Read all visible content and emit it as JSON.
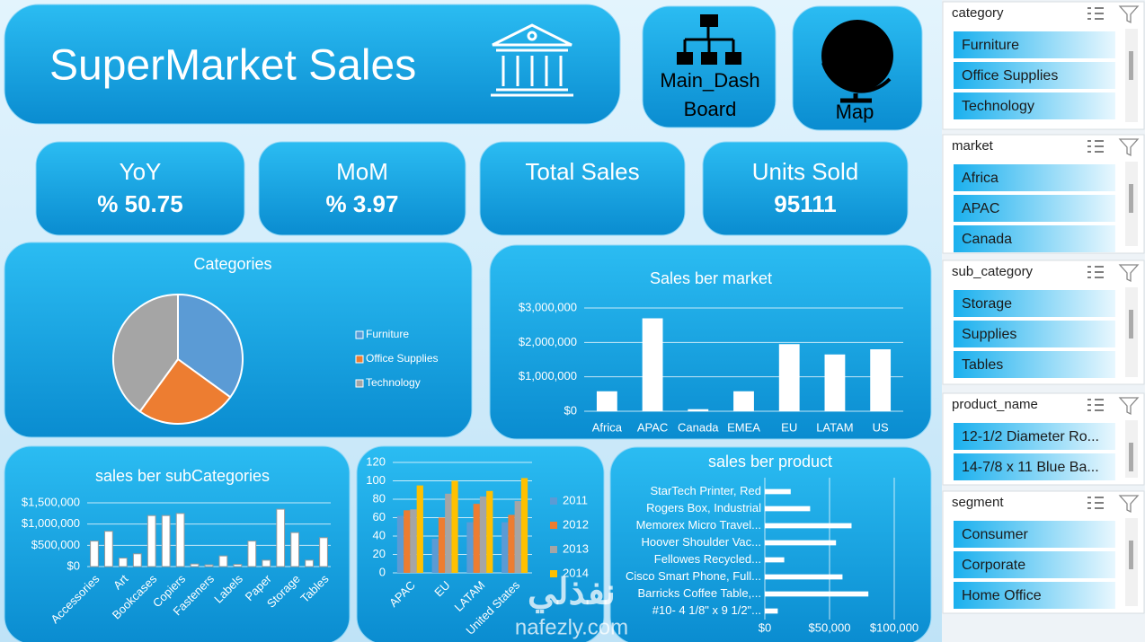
{
  "header": {
    "title": "SuperMarket Sales",
    "nav": [
      {
        "lines": [
          "Main_Dash",
          "Board"
        ]
      },
      {
        "lines": [
          "Map"
        ]
      }
    ]
  },
  "kpis": [
    {
      "label": "YoY",
      "value": "% 50.75"
    },
    {
      "label": "MoM",
      "value": "% 3.97"
    },
    {
      "label": "Total Sales"
    },
    {
      "label": "Units Sold",
      "value": "95111"
    }
  ],
  "slicers": [
    {
      "title": "category",
      "items": [
        "Furniture",
        "Office Supplies",
        "Technology"
      ]
    },
    {
      "title": "market",
      "items": [
        "Africa",
        "APAC",
        "Canada"
      ]
    },
    {
      "title": "sub_category",
      "items": [
        "Storage",
        "Supplies",
        "Tables"
      ]
    },
    {
      "title": "product_name",
      "items": [
        "12-1/2 Diameter Ro...",
        "14-7/8 x 11 Blue Ba..."
      ]
    },
    {
      "title": "segment",
      "items": [
        "Consumer",
        "Corporate",
        "Home Office"
      ]
    }
  ],
  "watermark": {
    "arabic": "نفذلي",
    "latin": "nafezly.com"
  },
  "chart_data": [
    {
      "type": "pie",
      "title": "Categories",
      "categories": [
        "Furniture",
        "Office Supplies",
        "Technology"
      ],
      "values": [
        35,
        25,
        40
      ],
      "colors": [
        "#5b9bd5",
        "#ed7d31",
        "#a5a5a5"
      ]
    },
    {
      "type": "bar",
      "title": "Sales ber market",
      "categories": [
        "Africa",
        "APAC",
        "Canada",
        "EMEA",
        "EU",
        "LATAM",
        "US"
      ],
      "values": [
        580000,
        2700000,
        60000,
        580000,
        1950000,
        1650000,
        1800000
      ],
      "color": "#ffffff",
      "ylim": [
        0,
        3000000
      ],
      "yticks": [
        {
          "value": 0,
          "label": "$0"
        },
        {
          "value": 1000000,
          "label": "$1,000,000"
        },
        {
          "value": 2000000,
          "label": "$2,000,000"
        },
        {
          "value": 3000000,
          "label": "$3,000,000"
        }
      ],
      "grid": true
    },
    {
      "type": "bar",
      "title": "sales ber subCategories",
      "categories": [
        "Accessories",
        null,
        "Art",
        null,
        "Bookcases",
        null,
        "Copiers",
        null,
        "Fasteners",
        null,
        "Labels",
        null,
        "Paper",
        null,
        "Storage",
        null,
        "Tables"
      ],
      "values": [
        600000,
        830000,
        200000,
        300000,
        1200000,
        1200000,
        1250000,
        60000,
        40000,
        250000,
        50000,
        600000,
        150000,
        1350000,
        800000,
        150000,
        680000
      ],
      "color": "#ffffff",
      "ylim": [
        0,
        1500000
      ],
      "yticks": [
        {
          "value": 0,
          "label": "$0"
        },
        {
          "value": 500000,
          "label": "$500,000"
        },
        {
          "value": 1000000,
          "label": "$1,000,000"
        },
        {
          "value": 1500000,
          "label": "$1,500,000"
        }
      ],
      "grid": true
    },
    {
      "type": "bar",
      "categories": [
        "APAC",
        "EU",
        "LATAM",
        "United States"
      ],
      "series": [
        {
          "name": "2011",
          "color": "#5b9bd5",
          "values": [
            62,
            37,
            55,
            55
          ]
        },
        {
          "name": "2012",
          "color": "#ed7d31",
          "values": [
            68,
            60,
            75,
            63
          ]
        },
        {
          "name": "2013",
          "color": "#a5a5a5",
          "values": [
            69,
            86,
            83,
            78
          ]
        },
        {
          "name": "2014",
          "color": "#ffc000",
          "values": [
            95,
            100,
            89,
            103
          ]
        }
      ],
      "ylim": [
        0,
        120
      ],
      "yticks": [
        0,
        20,
        40,
        60,
        80,
        100,
        120
      ],
      "grid": true
    },
    {
      "type": "barh",
      "title": "sales ber product",
      "categories": [
        "StarTech Printer, Red",
        "Rogers Box, Industrial",
        "Memorex Micro Travel...",
        "Hoover Shoulder Vac...",
        "Fellowes Recycled...",
        "Cisco Smart Phone, Full...",
        "Barricks Coffee Table,...",
        "#10- 4 1/8\" x 9 1/2\"..."
      ],
      "values": [
        20000,
        35000,
        67000,
        55000,
        15000,
        60000,
        80000,
        10000
      ],
      "color": "#ffffff",
      "xlim": [
        0,
        100000
      ],
      "xticks": [
        {
          "value": 0,
          "label": "$0"
        },
        {
          "value": 50000,
          "label": "$50,000"
        },
        {
          "value": 100000,
          "label": "$100,000"
        }
      ],
      "grid": true
    }
  ]
}
